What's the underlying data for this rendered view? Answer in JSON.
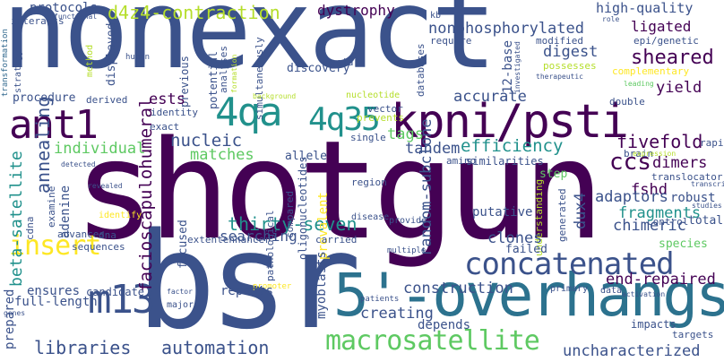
{
  "words": [
    {
      "id": "nonexact",
      "text": "nonexact",
      "color": "#3b528b"
    },
    {
      "id": "shotgun",
      "text": "shotgun",
      "color": "#440154"
    },
    {
      "id": "bsr",
      "text": "bsr",
      "color": "#3b528b"
    },
    {
      "id": "overhangs",
      "text": "5'-overhangs",
      "color": "#2c728e"
    },
    {
      "id": "kpni",
      "text": "kpni/psti",
      "color": "#440154"
    },
    {
      "id": "concatenated",
      "text": "concatenated",
      "color": "#3b528b"
    },
    {
      "id": "macrosatellite",
      "text": "macrosatellite",
      "color": "#5ec962"
    },
    {
      "id": "ant1",
      "text": "ant1",
      "color": "#440154"
    },
    {
      "id": "4qa",
      "text": "4qa",
      "color": "#21918c"
    },
    {
      "id": "4q35",
      "text": "4q35",
      "color": "#21918c"
    },
    {
      "id": "m13",
      "text": "m13",
      "color": "#3b528b"
    },
    {
      "id": "insert",
      "text": "insert",
      "color": "#fde725"
    },
    {
      "id": "d4z4",
      "text": "d4z4-contraction",
      "color": "#b5de2b"
    },
    {
      "id": "dystrophy",
      "text": "dystrophy",
      "color": "#440154"
    },
    {
      "id": "nonphos",
      "text": "nonphosphorylated",
      "color": "#3b528b"
    },
    {
      "id": "hq",
      "text": "high-quality",
      "color": "#3b528b"
    },
    {
      "id": "protocols",
      "text": "protocols",
      "color": "#3b528b"
    },
    {
      "id": "displayed",
      "text": "displayed",
      "color": "#3b528b"
    },
    {
      "id": "functional",
      "text": "functional",
      "color": "#3b528b"
    },
    {
      "id": "transformation",
      "text": "transformation",
      "color": "#31688e"
    },
    {
      "id": "strategy",
      "text": "strategy",
      "color": "#3b528b"
    },
    {
      "id": "pathogenesis",
      "text": "pathogenesis",
      "color": "#3b528b"
    },
    {
      "id": "interacts",
      "text": "interacts",
      "color": "#3b528b"
    },
    {
      "id": "method",
      "text": "method",
      "color": "#b5de2b"
    },
    {
      "id": "human",
      "text": "human",
      "color": "#3b528b"
    },
    {
      "id": "previous",
      "text": "previous",
      "color": "#3b528b"
    },
    {
      "id": "potential",
      "text": "potential",
      "color": "#3b528b"
    },
    {
      "id": "analyses",
      "text": "analyses",
      "color": "#3b528b"
    },
    {
      "id": "formation",
      "text": "formation",
      "color": "#b5de2b"
    },
    {
      "id": "simultaneously",
      "text": "simultaneously",
      "color": "#3b528b"
    },
    {
      "id": "acid",
      "text": "acid",
      "color": "#3b528b"
    },
    {
      "id": "discovery",
      "text": "discovery",
      "color": "#3b528b"
    },
    {
      "id": "databases",
      "text": "databases",
      "color": "#3b528b"
    },
    {
      "id": "12base",
      "text": "12-base",
      "color": "#3b528b"
    },
    {
      "id": "kb",
      "text": "kb",
      "color": "#3b528b"
    },
    {
      "id": "require",
      "text": "require",
      "color": "#3b528b"
    },
    {
      "id": "investigated",
      "text": "investigated",
      "color": "#3b528b"
    },
    {
      "id": "modified",
      "text": "modified",
      "color": "#3b528b"
    },
    {
      "id": "role",
      "text": "role",
      "color": "#3b528b"
    },
    {
      "id": "epigenetic",
      "text": "epi/genetic",
      "color": "#3b528b"
    },
    {
      "id": "ligated",
      "text": "ligated",
      "color": "#440154"
    },
    {
      "id": "sheared",
      "text": "sheared",
      "color": "#440154"
    },
    {
      "id": "digest",
      "text": "digest",
      "color": "#3b528b"
    },
    {
      "id": "possesses",
      "text": "possesses",
      "color": "#b5de2b"
    },
    {
      "id": "therapeutic",
      "text": "therapeutic",
      "color": "#3b528b"
    },
    {
      "id": "complementary",
      "text": "complementary",
      "color": "#fde725"
    },
    {
      "id": "leading",
      "text": "leading",
      "color": "#5ec962"
    },
    {
      "id": "procedure",
      "text": "procedure",
      "color": "#3b528b"
    },
    {
      "id": "derived",
      "text": "derived",
      "color": "#3b528b"
    },
    {
      "id": "ests",
      "text": "ests",
      "color": "#440154"
    },
    {
      "id": "background",
      "text": "background",
      "color": "#b5de2b"
    },
    {
      "id": "nucleotide",
      "text": "nucleotide",
      "color": "#b5de2b"
    },
    {
      "id": "accurate",
      "text": "accurate",
      "color": "#3b528b"
    },
    {
      "id": "yield",
      "text": "yield",
      "color": "#440154"
    },
    {
      "id": "identity",
      "text": "identity",
      "color": "#3b528b"
    },
    {
      "id": "vector",
      "text": "vector",
      "color": "#3b528b"
    },
    {
      "id": "prevents",
      "text": "prevents",
      "color": "#b5de2b"
    },
    {
      "id": "double",
      "text": "double",
      "color": "#3b528b"
    },
    {
      "id": "exact",
      "text": "exact",
      "color": "#3b528b"
    },
    {
      "id": "tags",
      "text": "tags",
      "color": "#5ec962"
    },
    {
      "id": "single",
      "text": "single",
      "color": "#3b528b"
    },
    {
      "id": "efficiency",
      "text": "efficiency",
      "color": "#21918c"
    },
    {
      "id": "fivefold",
      "text": "fivefold",
      "color": "#440154"
    },
    {
      "id": "rapid",
      "text": "rapid",
      "color": "#3b528b"
    },
    {
      "id": "annealing",
      "text": "annealing",
      "color": "#3b528b"
    },
    {
      "id": "nucleic",
      "text": "nucleic",
      "color": "#3b528b"
    },
    {
      "id": "individual",
      "text": "individual",
      "color": "#5ec962"
    },
    {
      "id": "matches",
      "text": "matches",
      "color": "#5ec962"
    },
    {
      "id": "allele",
      "text": "allele",
      "color": "#3b528b"
    },
    {
      "id": "tandem",
      "text": "tandem",
      "color": "#3b528b"
    },
    {
      "id": "similarities",
      "text": "similarities",
      "color": "#3b528b"
    },
    {
      "id": "ccs",
      "text": "ccs",
      "color": "#440154"
    },
    {
      "id": "dimers",
      "text": "dimers",
      "color": "#440154"
    },
    {
      "id": "detected",
      "text": "detected",
      "color": "#3b528b"
    },
    {
      "id": "amino",
      "text": "amino",
      "color": "#3b528b"
    },
    {
      "id": "brain",
      "text": "brain",
      "color": "#3b528b"
    },
    {
      "id": "translocator",
      "text": "translocator",
      "color": "#3b528b"
    },
    {
      "id": "oligonucleotides",
      "text": "oligonucleotides",
      "color": "#3b528b"
    },
    {
      "id": "randomsub",
      "text": "random-subclone",
      "color": "#3b528b"
    },
    {
      "id": "fshd",
      "text": "fshd",
      "color": "#440154"
    },
    {
      "id": "expression",
      "text": "expression",
      "color": "#b5de2b"
    },
    {
      "id": "step",
      "text": "step",
      "color": "#5ec962"
    },
    {
      "id": "transcript",
      "text": "transcript",
      "color": "#3b528b"
    },
    {
      "id": "robust",
      "text": "robust",
      "color": "#3b528b"
    },
    {
      "id": "studies",
      "text": "studies",
      "color": "#3b528b"
    },
    {
      "id": "betasat",
      "text": "beta-satellite",
      "color": "#21918c"
    },
    {
      "id": "adenine",
      "text": "adenine",
      "color": "#3b528b"
    },
    {
      "id": "examine",
      "text": "examine",
      "color": "#3b528b"
    },
    {
      "id": "revealed",
      "text": "revealed",
      "color": "#3b528b"
    },
    {
      "id": "pathological",
      "text": "pathological",
      "color": "#3b528b"
    },
    {
      "id": "region",
      "text": "region",
      "color": "#3b528b"
    },
    {
      "id": "dux4",
      "text": "dux4",
      "color": "#3b528b"
    },
    {
      "id": "adaptors",
      "text": "adaptors",
      "color": "#3b528b"
    },
    {
      "id": "control",
      "text": "control",
      "color": "#3b528b"
    },
    {
      "id": "total",
      "text": "total",
      "color": "#3b528b"
    },
    {
      "id": "thirtyseven",
      "text": "thirty-seven",
      "color": "#21918c"
    },
    {
      "id": "facio",
      "text": "facioscapulohumeral",
      "color": "#440154"
    },
    {
      "id": "searching",
      "text": "searching",
      "color": "#3b528b"
    },
    {
      "id": "focused",
      "text": "focused",
      "color": "#3b528b"
    },
    {
      "id": "compared",
      "text": "compared",
      "color": "#3b528b"
    },
    {
      "id": "prevalent",
      "text": "prevalent",
      "color": "#fde725"
    },
    {
      "id": "disease",
      "text": "disease",
      "color": "#3b528b"
    },
    {
      "id": "putative",
      "text": "putative",
      "color": "#3b528b"
    },
    {
      "id": "understanding",
      "text": "understanding",
      "color": "#b5de2b"
    },
    {
      "id": "generated",
      "text": "generated",
      "color": "#3b528b"
    },
    {
      "id": "species",
      "text": "species",
      "color": "#5ec962"
    },
    {
      "id": "fragments",
      "text": "fragments",
      "color": "#21918c"
    },
    {
      "id": "chimeric",
      "text": "chimeric",
      "color": "#3b528b"
    },
    {
      "id": "clones",
      "text": "clones",
      "color": "#3b528b"
    },
    {
      "id": "failed",
      "text": "failed",
      "color": "#3b528b"
    },
    {
      "id": "provide",
      "text": "provide",
      "color": "#3b528b"
    },
    {
      "id": "identify",
      "text": "identify",
      "color": "#fde725"
    },
    {
      "id": "cdna",
      "text": "cdna",
      "color": "#3b528b"
    },
    {
      "id": "advances",
      "text": "advances",
      "color": "#3b528b"
    },
    {
      "id": "dna",
      "text": "dna",
      "color": "#3b528b"
    },
    {
      "id": "sequences",
      "text": "sequences",
      "color": "#3b528b"
    },
    {
      "id": "extenhancer",
      "text": "extentenhancer",
      "color": "#3b528b"
    },
    {
      "id": "carried",
      "text": "carried",
      "color": "#3b528b"
    },
    {
      "id": "multiple",
      "text": "multiple",
      "color": "#3b528b"
    },
    {
      "id": "construction",
      "text": "construction",
      "color": "#3b528b"
    },
    {
      "id": "endrepaired",
      "text": "end-repaired",
      "color": "#440154"
    },
    {
      "id": "ensures",
      "text": "ensures",
      "color": "#3b528b"
    },
    {
      "id": "candidate",
      "text": "candidate",
      "color": "#3b528b"
    },
    {
      "id": "fulllength",
      "text": "full-length",
      "color": "#3b528b"
    },
    {
      "id": "factor",
      "text": "factor",
      "color": "#3b528b"
    },
    {
      "id": "genes",
      "text": "genes",
      "color": "#3b528b"
    },
    {
      "id": "major",
      "text": "major",
      "color": "#3b528b"
    },
    {
      "id": "promoter",
      "text": "promoter",
      "color": "#fde725"
    },
    {
      "id": "myoblasts",
      "text": "myoblasts",
      "color": "#3b528b"
    },
    {
      "id": "patients",
      "text": "patients",
      "color": "#3b528b"
    },
    {
      "id": "creating",
      "text": "creating",
      "color": "#3b528b"
    },
    {
      "id": "primary",
      "text": "primary",
      "color": "#3b528b"
    },
    {
      "id": "data",
      "text": "data",
      "color": "#3b528b"
    },
    {
      "id": "activation",
      "text": "activation",
      "color": "#3b528b"
    },
    {
      "id": "impacts",
      "text": "impacts",
      "color": "#3b528b"
    },
    {
      "id": "targets",
      "text": "targets",
      "color": "#3b528b"
    },
    {
      "id": "prepared",
      "text": "prepared",
      "color": "#3b528b"
    },
    {
      "id": "repeats",
      "text": "repeats",
      "color": "#3b528b"
    },
    {
      "id": "depends",
      "text": "depends",
      "color": "#3b528b"
    },
    {
      "id": "libraries",
      "text": "libraries",
      "color": "#3b528b"
    },
    {
      "id": "automation",
      "text": "automation",
      "color": "#3b528b"
    },
    {
      "id": "uncharacterized",
      "text": "uncharacterized",
      "color": "#3b528b"
    }
  ]
}
